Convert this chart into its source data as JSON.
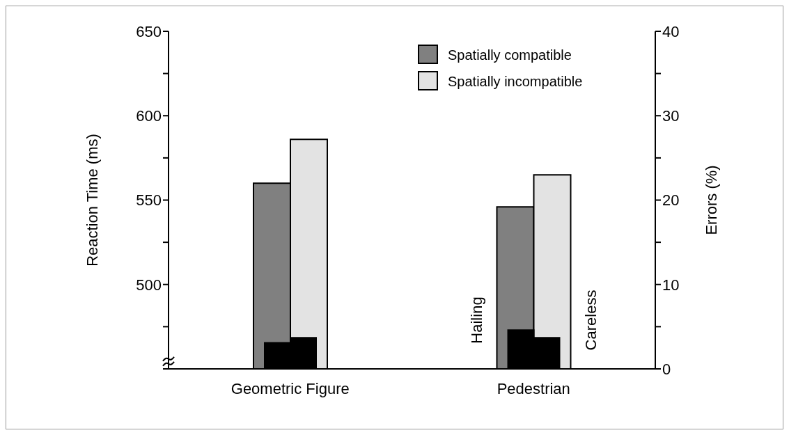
{
  "chart_data": {
    "type": "bar",
    "categories": [
      "Geometric Figure",
      "Pedestrian"
    ],
    "ylabel": "Reaction Time (ms)",
    "y2label": "Errors (%)",
    "ylim": [
      450,
      650
    ],
    "yticks": [
      {
        "value": 450,
        "label": null
      },
      {
        "value": 475,
        "label": null
      },
      500,
      {
        "value": 525,
        "label": null
      },
      550,
      {
        "value": 575,
        "label": null
      },
      600,
      {
        "value": 625,
        "label": null
      },
      650
    ],
    "y2lim": [
      0,
      40
    ],
    "y2ticks": [
      0,
      {
        "value": 5,
        "label": null
      },
      10,
      {
        "value": 15,
        "label": null
      },
      20,
      {
        "value": 25,
        "label": null
      },
      30,
      {
        "value": 35,
        "label": null
      },
      40
    ],
    "series": [
      {
        "name": "Spatially compatible",
        "color": "#808080",
        "values": [
          560,
          546
        ]
      },
      {
        "name": "Spatially incompatible",
        "color": "#e3e3e3",
        "values": [
          586,
          565
        ]
      },
      {
        "color": "#000000",
        "values": [
          3.1,
          4.6
        ],
        "axis": "y2"
      },
      {
        "color": "#000000",
        "values": [
          3.7,
          3.7
        ],
        "axis": "y2"
      }
    ],
    "annotations": [
      "Hailing",
      "Careless"
    ],
    "legend": "top right",
    "grid": false
  }
}
